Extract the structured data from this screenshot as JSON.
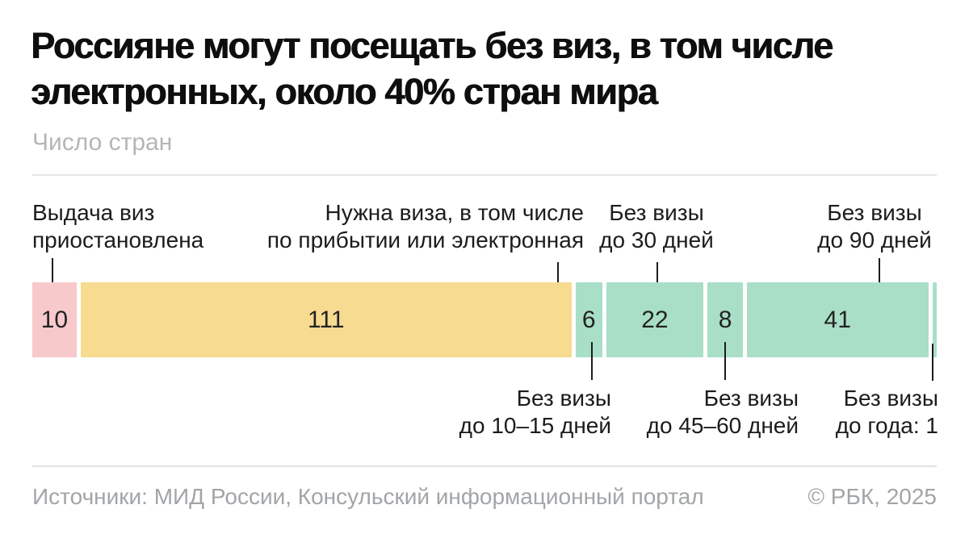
{
  "header": {
    "title_lines": [
      "Россияне могут посещать без виз, в том числе",
      "электронных, около 40% стран мира"
    ],
    "subtitle": "Число стран"
  },
  "chart_data": {
    "type": "bar",
    "orientation": "horizontal",
    "stacked": true,
    "title": "Россияне могут посещать без виз, в том числе электронных, около 40% стран мира",
    "unit": "Число стран",
    "total": 199,
    "legend_position": "annotations",
    "grid": false,
    "segments": [
      {
        "label": "Выдача виз приостановлена",
        "value": 10,
        "color": "#f8c9cb",
        "show_value": true
      },
      {
        "label": "Нужна виза, в том числе по прибытии или электронная",
        "value": 111,
        "color": "#f6db90",
        "show_value": true
      },
      {
        "label": "Без визы до 10–15 дней",
        "value": 6,
        "color": "#a9dfc6",
        "show_value": true
      },
      {
        "label": "Без визы до 30 дней",
        "value": 22,
        "color": "#a9dfc6",
        "show_value": true
      },
      {
        "label": "Без визы до 45–60 дней",
        "value": 8,
        "color": "#a9dfc6",
        "show_value": true
      },
      {
        "label": "Без визы до 90 дней",
        "value": 41,
        "color": "#a9dfc6",
        "show_value": true
      },
      {
        "label": "Без визы до года",
        "value": 1,
        "color": "#a9dfc6",
        "show_value": false
      }
    ]
  },
  "annotations": {
    "top": [
      {
        "line1": "Выдача виз",
        "line2": "приостановлена"
      },
      {
        "line1": "Нужна виза, в том числе",
        "line2": "по прибытии или электронная"
      },
      {
        "line1": "Без визы",
        "line2": "до 30 дней"
      },
      {
        "line1": "Без визы",
        "line2": "до 90 дней"
      }
    ],
    "bottom": [
      {
        "line1": "Без визы",
        "line2": "до 10–15 дней"
      },
      {
        "line1": "Без визы",
        "line2": "до 45–60 дней"
      },
      {
        "line1": "Без визы",
        "line2": "до года: 1"
      }
    ]
  },
  "footer": {
    "sources": "Источники: МИД России, Консульский информационный портал",
    "copyright": "© РБК, 2025"
  },
  "colors": {
    "suspended": "#f8c9cb",
    "visa_required": "#f6db90",
    "visa_free": "#a9dfc6",
    "text": "#1c1c1c",
    "muted": "#b3b6b8",
    "divider": "#e7e7e7"
  }
}
